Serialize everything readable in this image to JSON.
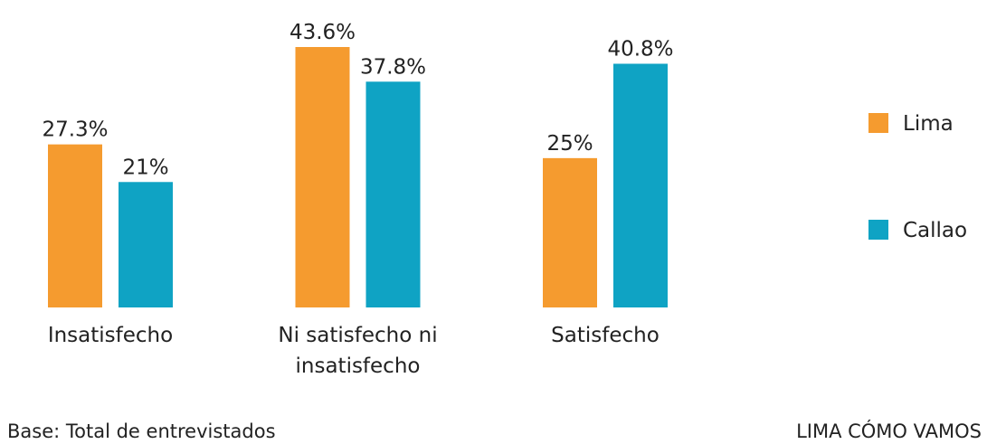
{
  "chart_data": {
    "type": "bar",
    "categories": [
      "Insatisfecho",
      "Ni satisfecho ni insatisfecho",
      "Satisfecho"
    ],
    "series": [
      {
        "name": "Lima",
        "color": "#f59b2f",
        "values": [
          27.3,
          43.6,
          25
        ],
        "value_labels": [
          "27.3%",
          "43.6%",
          "25%"
        ]
      },
      {
        "name": "Callao",
        "color": "#0fa3c4",
        "values": [
          21,
          37.8,
          40.8
        ],
        "value_labels": [
          "21%",
          "37.8%",
          "40.8%"
        ]
      }
    ],
    "legend": "right",
    "note": "Base: Total de entrevistados",
    "source": "LIMA CÓMO VAMOS"
  }
}
